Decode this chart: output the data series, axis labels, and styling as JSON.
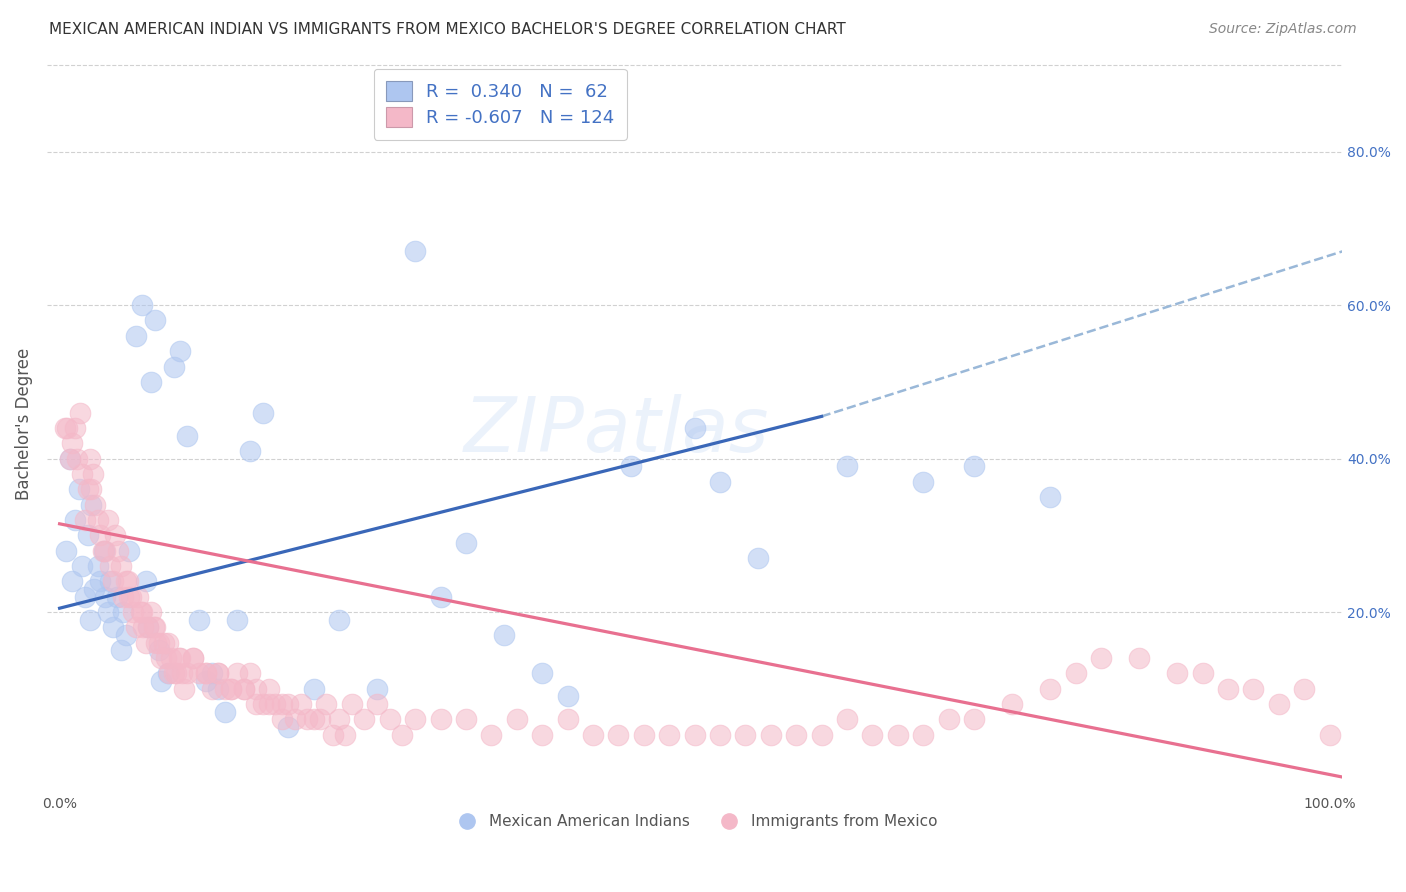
{
  "title": "MEXICAN AMERICAN INDIAN VS IMMIGRANTS FROM MEXICO BACHELOR'S DEGREE CORRELATION CHART",
  "source": "Source: ZipAtlas.com",
  "ylabel": "Bachelor's Degree",
  "ylabel_right_ticks": [
    "80.0%",
    "60.0%",
    "40.0%",
    "20.0%"
  ],
  "ylabel_right_vals": [
    0.8,
    0.6,
    0.4,
    0.2
  ],
  "xlim": [
    -0.01,
    1.01
  ],
  "ylim": [
    -0.03,
    0.92
  ],
  "legend_color1": "#aec6f0",
  "legend_color2": "#f4b8c8",
  "watermark": "ZIPatlas",
  "scatter_blue_x": [
    0.005,
    0.008,
    0.01,
    0.012,
    0.015,
    0.018,
    0.02,
    0.022,
    0.024,
    0.025,
    0.027,
    0.03,
    0.032,
    0.035,
    0.036,
    0.038,
    0.04,
    0.042,
    0.045,
    0.048,
    0.05,
    0.052,
    0.055,
    0.06,
    0.065,
    0.068,
    0.07,
    0.072,
    0.075,
    0.078,
    0.08,
    0.085,
    0.09,
    0.095,
    0.1,
    0.11,
    0.115,
    0.12,
    0.125,
    0.13,
    0.14,
    0.15,
    0.16,
    0.18,
    0.2,
    0.22,
    0.25,
    0.28,
    0.3,
    0.32,
    0.35,
    0.38,
    0.4,
    0.45,
    0.5,
    0.52,
    0.55,
    0.62,
    0.68,
    0.72,
    0.78
  ],
  "scatter_blue_y": [
    0.28,
    0.4,
    0.24,
    0.32,
    0.36,
    0.26,
    0.22,
    0.3,
    0.19,
    0.34,
    0.23,
    0.26,
    0.24,
    0.28,
    0.22,
    0.2,
    0.24,
    0.18,
    0.22,
    0.15,
    0.2,
    0.17,
    0.28,
    0.56,
    0.6,
    0.24,
    0.18,
    0.5,
    0.58,
    0.15,
    0.11,
    0.12,
    0.52,
    0.54,
    0.43,
    0.19,
    0.11,
    0.12,
    0.1,
    0.07,
    0.19,
    0.41,
    0.46,
    0.05,
    0.1,
    0.19,
    0.1,
    0.67,
    0.22,
    0.29,
    0.17,
    0.12,
    0.09,
    0.39,
    0.44,
    0.37,
    0.27,
    0.39,
    0.37,
    0.39,
    0.35
  ],
  "scatter_pink_x": [
    0.004,
    0.006,
    0.008,
    0.01,
    0.012,
    0.014,
    0.016,
    0.018,
    0.02,
    0.022,
    0.024,
    0.025,
    0.026,
    0.028,
    0.03,
    0.032,
    0.034,
    0.036,
    0.038,
    0.04,
    0.042,
    0.044,
    0.046,
    0.048,
    0.05,
    0.052,
    0.054,
    0.056,
    0.058,
    0.06,
    0.062,
    0.064,
    0.066,
    0.068,
    0.07,
    0.072,
    0.074,
    0.076,
    0.078,
    0.08,
    0.082,
    0.084,
    0.086,
    0.088,
    0.09,
    0.092,
    0.094,
    0.096,
    0.098,
    0.1,
    0.105,
    0.11,
    0.115,
    0.12,
    0.125,
    0.13,
    0.135,
    0.14,
    0.145,
    0.15,
    0.155,
    0.16,
    0.165,
    0.17,
    0.175,
    0.18,
    0.19,
    0.2,
    0.21,
    0.22,
    0.23,
    0.24,
    0.25,
    0.26,
    0.27,
    0.28,
    0.3,
    0.32,
    0.34,
    0.36,
    0.38,
    0.4,
    0.42,
    0.44,
    0.46,
    0.48,
    0.5,
    0.52,
    0.54,
    0.56,
    0.58,
    0.6,
    0.62,
    0.64,
    0.66,
    0.68,
    0.7,
    0.72,
    0.75,
    0.78,
    0.8,
    0.82,
    0.85,
    0.88,
    0.9,
    0.92,
    0.94,
    0.96,
    0.98,
    1.0,
    0.055,
    0.065,
    0.075,
    0.085,
    0.095,
    0.105,
    0.115,
    0.125,
    0.135,
    0.145,
    0.155,
    0.165,
    0.175,
    0.185,
    0.195,
    0.205,
    0.215,
    0.225
  ],
  "scatter_pink_y": [
    0.44,
    0.44,
    0.4,
    0.42,
    0.44,
    0.4,
    0.46,
    0.38,
    0.32,
    0.36,
    0.4,
    0.36,
    0.38,
    0.34,
    0.32,
    0.3,
    0.28,
    0.28,
    0.32,
    0.26,
    0.24,
    0.3,
    0.28,
    0.26,
    0.22,
    0.24,
    0.24,
    0.22,
    0.2,
    0.18,
    0.22,
    0.2,
    0.18,
    0.16,
    0.18,
    0.2,
    0.18,
    0.16,
    0.16,
    0.14,
    0.16,
    0.14,
    0.12,
    0.14,
    0.12,
    0.12,
    0.14,
    0.12,
    0.1,
    0.12,
    0.14,
    0.12,
    0.12,
    0.1,
    0.12,
    0.1,
    0.1,
    0.12,
    0.1,
    0.12,
    0.1,
    0.08,
    0.1,
    0.08,
    0.08,
    0.08,
    0.08,
    0.06,
    0.08,
    0.06,
    0.08,
    0.06,
    0.08,
    0.06,
    0.04,
    0.06,
    0.06,
    0.06,
    0.04,
    0.06,
    0.04,
    0.06,
    0.04,
    0.04,
    0.04,
    0.04,
    0.04,
    0.04,
    0.04,
    0.04,
    0.04,
    0.04,
    0.06,
    0.04,
    0.04,
    0.04,
    0.06,
    0.06,
    0.08,
    0.1,
    0.12,
    0.14,
    0.14,
    0.12,
    0.12,
    0.1,
    0.1,
    0.08,
    0.1,
    0.04,
    0.22,
    0.2,
    0.18,
    0.16,
    0.14,
    0.14,
    0.12,
    0.12,
    0.1,
    0.1,
    0.08,
    0.08,
    0.06,
    0.06,
    0.06,
    0.06,
    0.04,
    0.04
  ],
  "blue_line_x": [
    0.0,
    0.6
  ],
  "blue_line_y_start": 0.205,
  "blue_line_y_end": 0.455,
  "dashed_line_x": [
    0.6,
    1.01
  ],
  "dashed_line_y_start": 0.455,
  "dashed_line_y_end": 0.67,
  "pink_line_x": [
    0.0,
    1.01
  ],
  "pink_line_y_start": 0.315,
  "pink_line_y_end": -0.015,
  "grid_vals": [
    0.2,
    0.4,
    0.6,
    0.8
  ],
  "grid_color": "#cccccc",
  "bg_color": "#ffffff",
  "plot_bg_color": "#ffffff",
  "blue_scatter_color": "#aec6f0",
  "pink_scatter_color": "#f4b8c8",
  "blue_line_color": "#3a67b8",
  "pink_line_color": "#e87090",
  "dashed_line_color": "#9ab8d8",
  "right_axis_color": "#4472c4",
  "scatter_size": 220,
  "scatter_alpha": 0.55,
  "legend_fontsize": 13,
  "title_fontsize": 11,
  "source_fontsize": 10,
  "watermark_fontsize": 55,
  "watermark_color": "#c8daf5",
  "watermark_alpha": 0.35
}
